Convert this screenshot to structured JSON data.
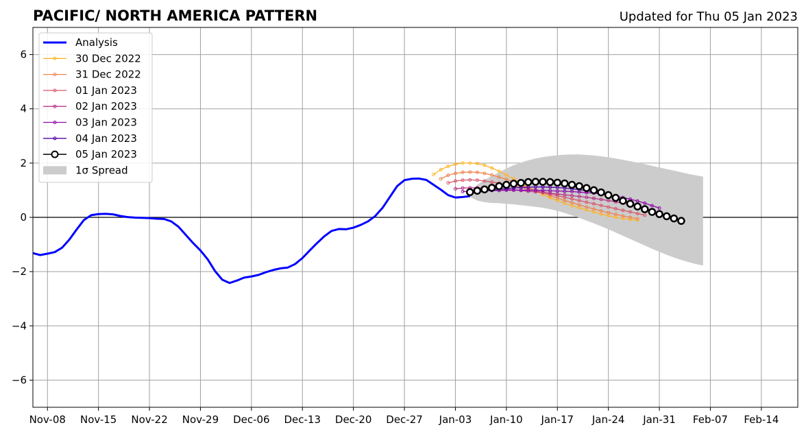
{
  "chart_data": {
    "type": "line",
    "title": "PACIFIC/ NORTH AMERICA PATTERN",
    "subtitle": "Updated for Thu 05 Jan 2023",
    "xlim": [
      "2022-11-06",
      "2023-02-19"
    ],
    "ylim": [
      -7,
      7
    ],
    "xticks": [
      {
        "date": "2022-11-08",
        "label": "Nov-08"
      },
      {
        "date": "2022-11-15",
        "label": "Nov-15"
      },
      {
        "date": "2022-11-22",
        "label": "Nov-22"
      },
      {
        "date": "2022-11-29",
        "label": "Nov-29"
      },
      {
        "date": "2022-12-06",
        "label": "Dec-06"
      },
      {
        "date": "2022-12-13",
        "label": "Dec-13"
      },
      {
        "date": "2022-12-20",
        "label": "Dec-20"
      },
      {
        "date": "2022-12-27",
        "label": "Dec-27"
      },
      {
        "date": "2023-01-03",
        "label": "Jan-03"
      },
      {
        "date": "2023-01-10",
        "label": "Jan-10"
      },
      {
        "date": "2023-01-17",
        "label": "Jan-17"
      },
      {
        "date": "2023-01-24",
        "label": "Jan-24"
      },
      {
        "date": "2023-01-31",
        "label": "Jan-31"
      },
      {
        "date": "2023-02-07",
        "label": "Feb-07"
      },
      {
        "date": "2023-02-14",
        "label": "Feb-14"
      }
    ],
    "yticks": [
      {
        "value": 6,
        "label": "6"
      },
      {
        "value": 4,
        "label": "4"
      },
      {
        "value": 2,
        "label": "2"
      },
      {
        "value": 0,
        "label": "0"
      },
      {
        "value": -2,
        "label": "−2"
      },
      {
        "value": -4,
        "label": "−4"
      },
      {
        "value": -6,
        "label": "−6"
      }
    ],
    "grid": true,
    "legend_position": "top-left",
    "analysis": {
      "name": "Analysis",
      "color": "#0000ff",
      "start": "2022-11-06",
      "values": [
        -1.32,
        -1.39,
        -1.34,
        -1.28,
        -1.12,
        -0.82,
        -0.45,
        -0.1,
        0.08,
        0.12,
        0.13,
        0.11,
        0.05,
        0.01,
        -0.01,
        -0.02,
        -0.03,
        -0.05,
        -0.06,
        -0.15,
        -0.35,
        -0.65,
        -0.95,
        -1.22,
        -1.55,
        -1.98,
        -2.3,
        -2.42,
        -2.33,
        -2.22,
        -2.18,
        -2.12,
        -2.02,
        -1.94,
        -1.88,
        -1.85,
        -1.72,
        -1.5,
        -1.22,
        -0.95,
        -0.7,
        -0.5,
        -0.43,
        -0.44,
        -0.38,
        -0.28,
        -0.15,
        0.05,
        0.35,
        0.75,
        1.15,
        1.37,
        1.42,
        1.43,
        1.38,
        1.2,
        1.02,
        0.82,
        0.73,
        0.75,
        0.78
      ]
    },
    "spread": {
      "name": "1σ Spread",
      "color": "#cccccc",
      "start": "2023-01-05",
      "upper": [
        0.92,
        1.2,
        1.38,
        1.52,
        1.66,
        1.8,
        1.92,
        2.02,
        2.1,
        2.17,
        2.22,
        2.26,
        2.29,
        2.31,
        2.32,
        2.32,
        2.3,
        2.28,
        2.25,
        2.21,
        2.17,
        2.12,
        2.07,
        2.02,
        1.96,
        1.9,
        1.84,
        1.78,
        1.72,
        1.66,
        1.6,
        1.55,
        1.5
      ],
      "lower": [
        0.75,
        0.62,
        0.56,
        0.53,
        0.52,
        0.5,
        0.48,
        0.45,
        0.42,
        0.39,
        0.35,
        0.3,
        0.24,
        0.16,
        0.07,
        -0.02,
        -0.12,
        -0.22,
        -0.33,
        -0.44,
        -0.56,
        -0.68,
        -0.8,
        -0.92,
        -1.04,
        -1.16,
        -1.27,
        -1.38,
        -1.48,
        -1.57,
        -1.65,
        -1.72,
        -1.78
      ]
    },
    "forecasts": [
      {
        "name": "30 Dec 2022",
        "color": "#fdb52a",
        "marker_size": 2,
        "start": "2022-12-31",
        "values": [
          1.58,
          1.76,
          1.88,
          1.96,
          2.0,
          2.0,
          1.98,
          1.92,
          1.82,
          1.7,
          1.56,
          1.42,
          1.26,
          1.1,
          0.96,
          0.84,
          0.72,
          0.62,
          0.52,
          0.43,
          0.35,
          0.27,
          0.2,
          0.12,
          0.06,
          0.0,
          -0.04,
          -0.08,
          -0.1
        ]
      },
      {
        "name": "31 Dec 2022",
        "color": "#f0844f",
        "marker_size": 2,
        "start": "2023-01-01",
        "values": [
          1.42,
          1.55,
          1.62,
          1.66,
          1.67,
          1.66,
          1.62,
          1.56,
          1.48,
          1.4,
          1.3,
          1.2,
          1.1,
          1.0,
          0.9,
          0.8,
          0.71,
          0.62,
          0.54,
          0.46,
          0.38,
          0.31,
          0.24,
          0.17,
          0.11,
          0.05,
          0.0,
          -0.05
        ]
      },
      {
        "name": "01 Jan 2023",
        "color": "#d8576b",
        "marker_size": 2,
        "start": "2023-01-02",
        "values": [
          1.27,
          1.34,
          1.37,
          1.38,
          1.37,
          1.34,
          1.3,
          1.26,
          1.21,
          1.16,
          1.1,
          1.04,
          0.98,
          0.92,
          0.86,
          0.8,
          0.74,
          0.68,
          0.62,
          0.56,
          0.5,
          0.44,
          0.38,
          0.32,
          0.26,
          0.2,
          0.14,
          0.08
        ]
      },
      {
        "name": "02 Jan 2023",
        "color": "#b83289",
        "marker_size": 2,
        "start": "2023-01-03",
        "values": [
          1.05,
          1.08,
          1.09,
          1.09,
          1.08,
          1.07,
          1.05,
          1.03,
          1.01,
          0.99,
          0.96,
          0.94,
          0.92,
          0.89,
          0.86,
          0.83,
          0.8,
          0.77,
          0.74,
          0.7,
          0.66,
          0.62,
          0.57,
          0.52,
          0.46,
          0.4,
          0.33,
          0.26
        ]
      },
      {
        "name": "03 Jan 2023",
        "color": "#8b0aa5",
        "marker_size": 2,
        "start": "2023-01-04",
        "values": [
          0.95,
          0.96,
          0.97,
          0.98,
          0.99,
          0.99,
          1.0,
          1.0,
          1.0,
          1.0,
          1.0,
          0.99,
          0.98,
          0.97,
          0.96,
          0.95,
          0.93,
          0.91,
          0.89,
          0.86,
          0.82,
          0.78,
          0.73,
          0.67,
          0.6,
          0.52,
          0.43,
          0.34
        ]
      },
      {
        "name": "04 Jan 2023",
        "color": "#5302a3",
        "marker_size": 2,
        "start": "2023-01-05",
        "values": [
          0.88,
          0.92,
          0.96,
          1.0,
          1.03,
          1.06,
          1.08,
          1.1,
          1.11,
          1.12,
          1.12,
          1.11,
          1.1,
          1.08,
          1.05,
          1.02,
          0.98,
          0.93,
          0.87,
          0.8,
          0.72,
          0.63,
          0.53,
          0.43,
          0.33,
          0.23,
          0.14
        ]
      },
      {
        "name": "05 Jan 2023",
        "color": "#000000",
        "marker_size": 4.5,
        "start": "2023-01-05",
        "values": [
          0.93,
          0.98,
          1.03,
          1.09,
          1.15,
          1.2,
          1.24,
          1.27,
          1.3,
          1.31,
          1.31,
          1.3,
          1.28,
          1.25,
          1.2,
          1.15,
          1.08,
          1.0,
          0.92,
          0.82,
          0.72,
          0.61,
          0.5,
          0.4,
          0.3,
          0.2,
          0.12,
          0.04,
          -0.04,
          -0.13
        ]
      }
    ]
  }
}
